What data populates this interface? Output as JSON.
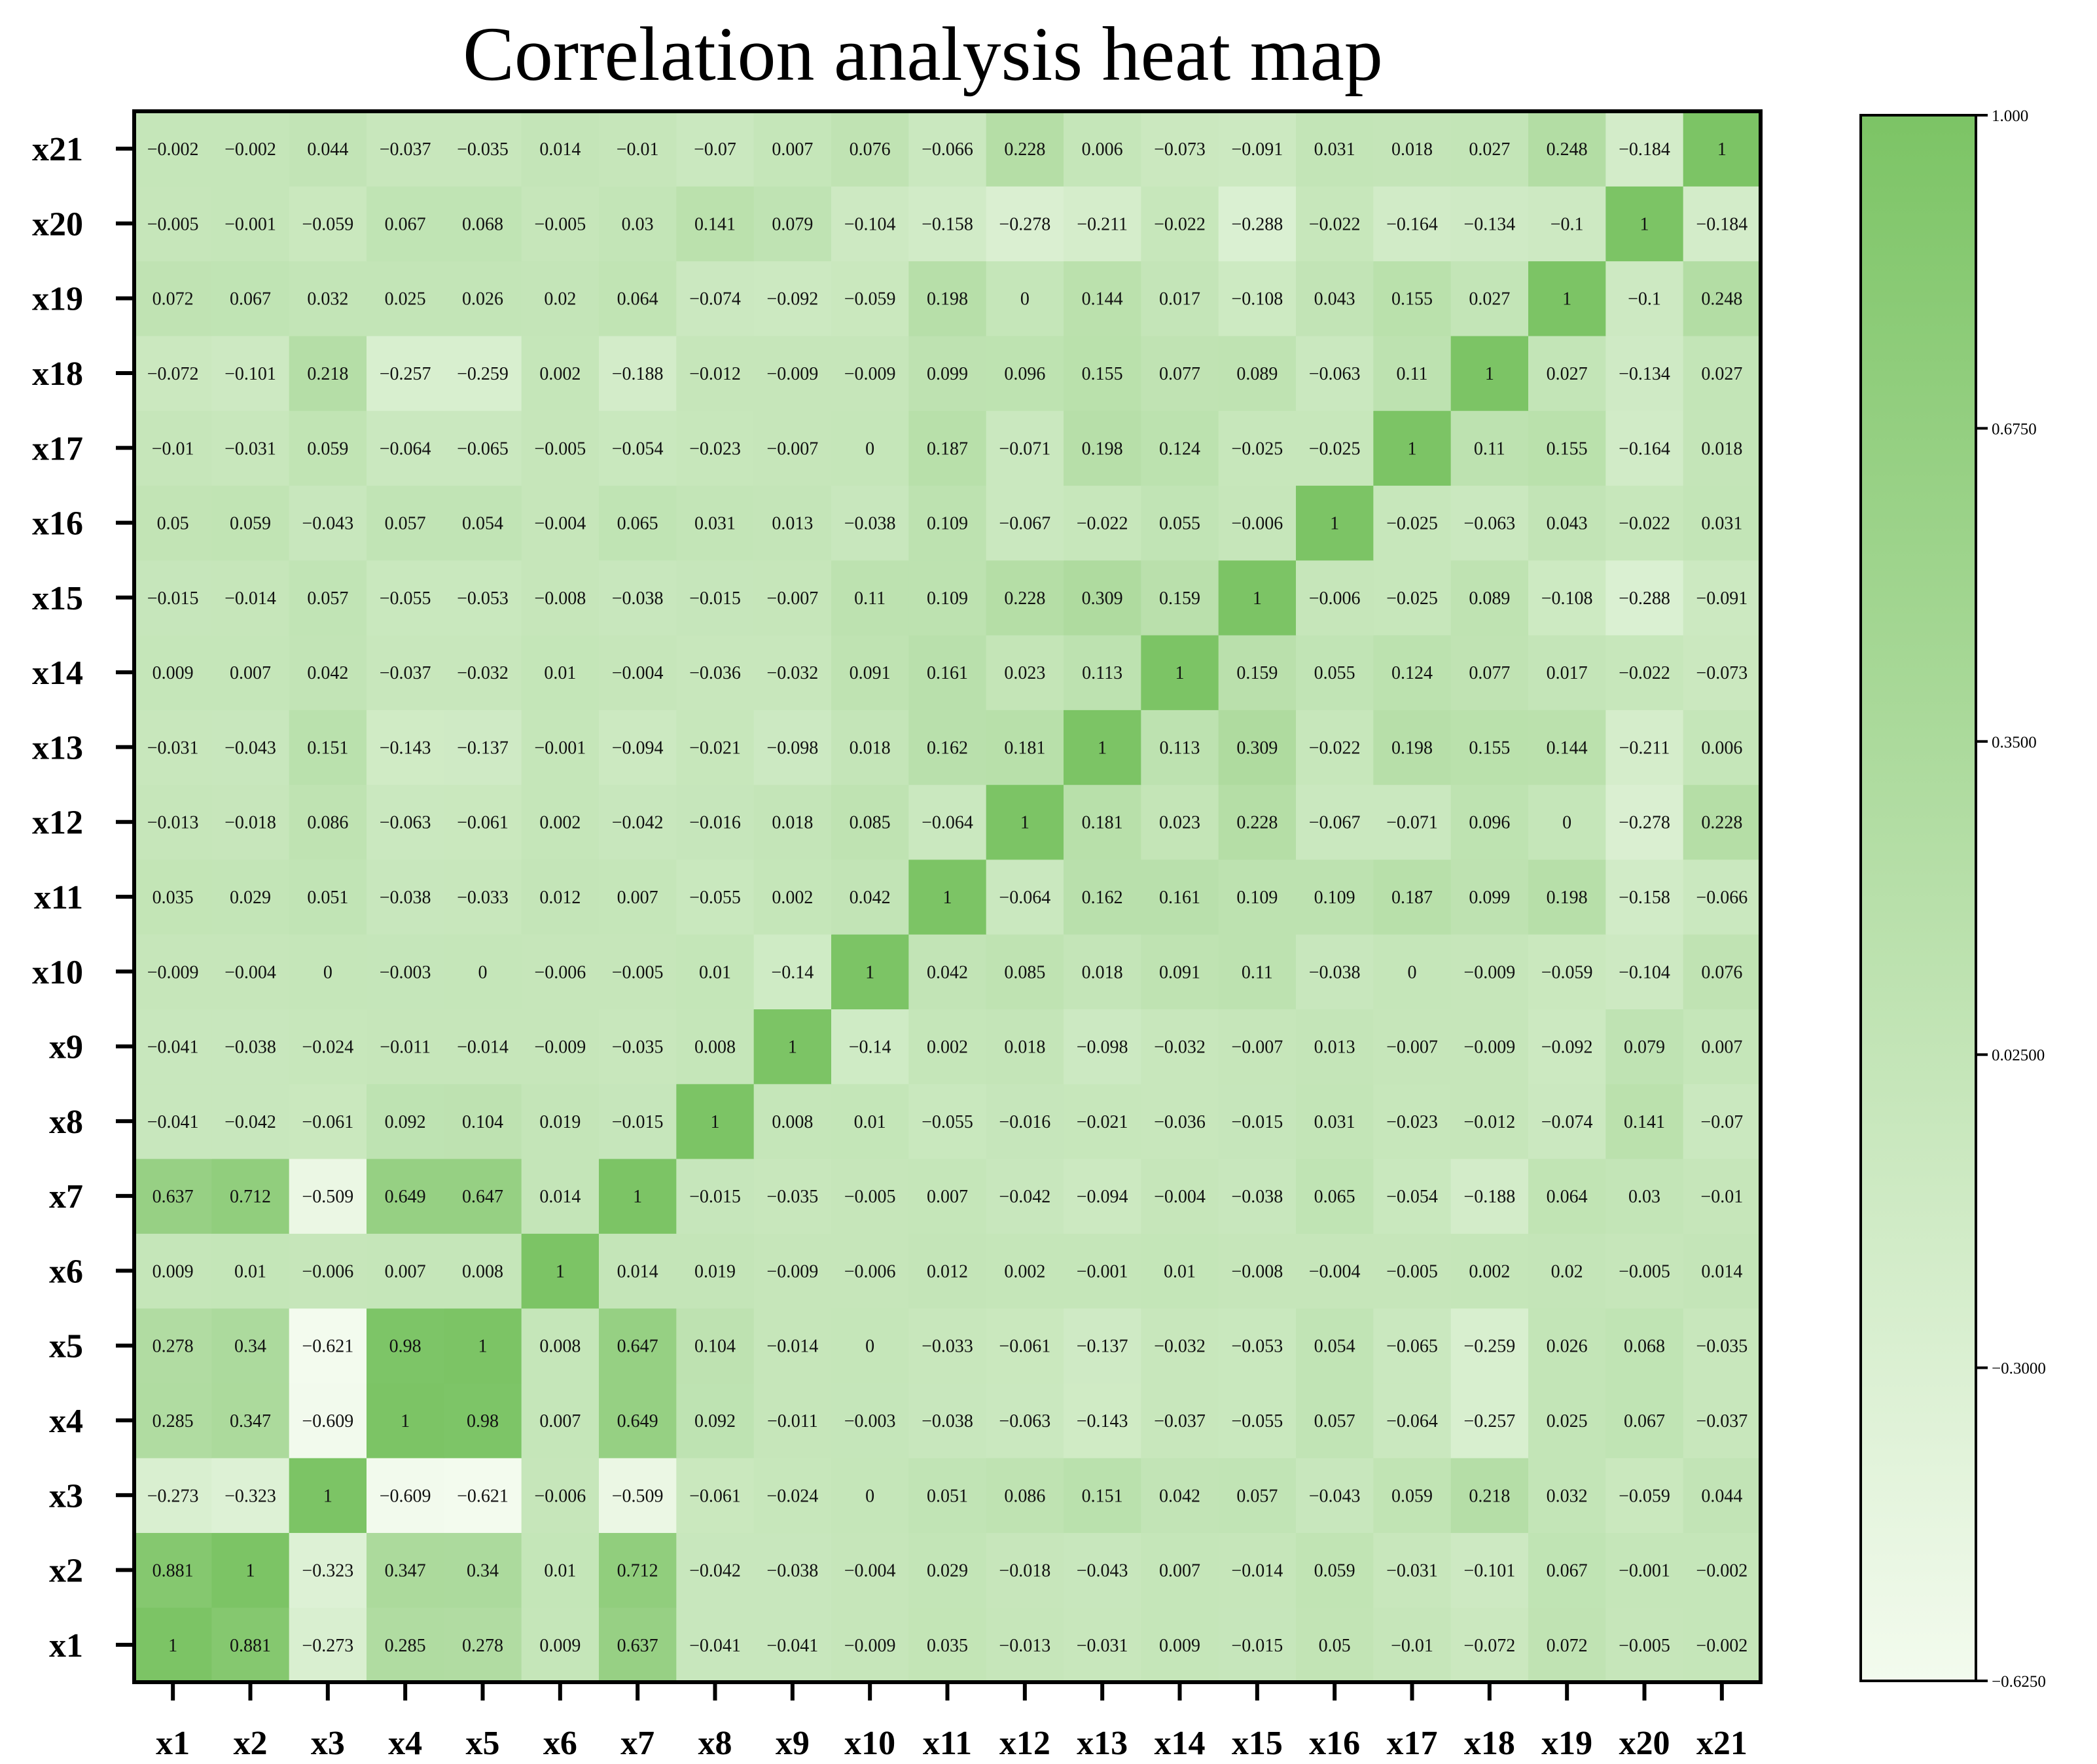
{
  "chart_data": {
    "type": "heatmap",
    "title": "Correlation analysis heat map",
    "xlabel": "",
    "ylabel": "",
    "labels": [
      "x1",
      "x2",
      "x3",
      "x4",
      "x5",
      "x6",
      "x7",
      "x8",
      "x9",
      "x10",
      "x11",
      "x12",
      "x13",
      "x14",
      "x15",
      "x16",
      "x17",
      "x18",
      "x19",
      "x20",
      "x21"
    ],
    "matrix": [
      [
        1,
        0.881,
        -0.273,
        0.285,
        0.278,
        0.009,
        0.637,
        -0.041,
        -0.041,
        -0.009,
        0.035,
        -0.013,
        -0.031,
        0.009,
        -0.015,
        0.05,
        -0.01,
        -0.072,
        0.072,
        -0.005,
        -0.002
      ],
      [
        0.881,
        1,
        -0.323,
        0.347,
        0.34,
        0.01,
        0.712,
        -0.042,
        -0.038,
        -0.004,
        0.029,
        -0.018,
        -0.043,
        0.007,
        -0.014,
        0.059,
        -0.031,
        -0.101,
        0.067,
        -0.001,
        -0.002
      ],
      [
        -0.273,
        -0.323,
        1,
        -0.609,
        -0.621,
        -0.006,
        -0.509,
        -0.061,
        -0.024,
        0,
        0.051,
        0.086,
        0.151,
        0.042,
        0.057,
        -0.043,
        0.059,
        0.218,
        0.032,
        -0.059,
        0.044
      ],
      [
        0.285,
        0.347,
        -0.609,
        1,
        0.98,
        0.007,
        0.649,
        0.092,
        -0.011,
        -0.003,
        -0.038,
        -0.063,
        -0.143,
        -0.037,
        -0.055,
        0.057,
        -0.064,
        -0.257,
        0.025,
        0.067,
        -0.037
      ],
      [
        0.278,
        0.34,
        -0.621,
        0.98,
        1,
        0.008,
        0.647,
        0.104,
        -0.014,
        0,
        -0.033,
        -0.061,
        -0.137,
        -0.032,
        -0.053,
        0.054,
        -0.065,
        -0.259,
        0.026,
        0.068,
        -0.035
      ],
      [
        0.009,
        0.01,
        -0.006,
        0.007,
        0.008,
        1,
        0.014,
        0.019,
        -0.009,
        -0.006,
        0.012,
        0.002,
        -0.001,
        0.01,
        -0.008,
        -0.004,
        -0.005,
        0.002,
        0.02,
        -0.005,
        0.014
      ],
      [
        0.637,
        0.712,
        -0.509,
        0.649,
        0.647,
        0.014,
        1,
        -0.015,
        -0.035,
        -0.005,
        0.007,
        -0.042,
        -0.094,
        -0.004,
        -0.038,
        0.065,
        -0.054,
        -0.188,
        0.064,
        0.03,
        -0.01
      ],
      [
        -0.041,
        -0.042,
        -0.061,
        0.092,
        0.104,
        0.019,
        -0.015,
        1,
        0.008,
        0.01,
        -0.055,
        -0.016,
        -0.021,
        -0.036,
        -0.015,
        0.031,
        -0.023,
        -0.012,
        -0.074,
        0.141,
        -0.07
      ],
      [
        -0.041,
        -0.038,
        -0.024,
        -0.011,
        -0.014,
        -0.009,
        -0.035,
        0.008,
        1,
        -0.14,
        0.002,
        0.018,
        -0.098,
        -0.032,
        -0.007,
        0.013,
        -0.007,
        -0.009,
        -0.092,
        0.079,
        0.007
      ],
      [
        -0.009,
        -0.004,
        0,
        -0.003,
        0,
        -0.006,
        -0.005,
        0.01,
        -0.14,
        1,
        0.042,
        0.085,
        0.018,
        0.091,
        0.11,
        -0.038,
        0,
        -0.009,
        -0.059,
        -0.104,
        0.076
      ],
      [
        0.035,
        0.029,
        0.051,
        -0.038,
        -0.033,
        0.012,
        0.007,
        -0.055,
        0.002,
        0.042,
        1,
        -0.064,
        0.162,
        0.161,
        0.109,
        0.109,
        0.187,
        0.099,
        0.198,
        -0.158,
        -0.066
      ],
      [
        -0.013,
        -0.018,
        0.086,
        -0.063,
        -0.061,
        0.002,
        -0.042,
        -0.016,
        0.018,
        0.085,
        -0.064,
        1,
        0.181,
        0.023,
        0.228,
        -0.067,
        -0.071,
        0.096,
        0,
        -0.278,
        0.228
      ],
      [
        -0.031,
        -0.043,
        0.151,
        -0.143,
        -0.137,
        -0.001,
        -0.094,
        -0.021,
        -0.098,
        0.018,
        0.162,
        0.181,
        1,
        0.113,
        0.309,
        -0.022,
        0.198,
        0.155,
        0.144,
        -0.211,
        0.006
      ],
      [
        0.009,
        0.007,
        0.042,
        -0.037,
        -0.032,
        0.01,
        -0.004,
        -0.036,
        -0.032,
        0.091,
        0.161,
        0.023,
        0.113,
        1,
        0.159,
        0.055,
        0.124,
        0.077,
        0.017,
        -0.022,
        -0.073
      ],
      [
        -0.015,
        -0.014,
        0.057,
        -0.055,
        -0.053,
        -0.008,
        -0.038,
        -0.015,
        -0.007,
        0.11,
        0.109,
        0.228,
        0.309,
        0.159,
        1,
        -0.006,
        -0.025,
        0.089,
        -0.108,
        -0.288,
        -0.091
      ],
      [
        0.05,
        0.059,
        -0.043,
        0.057,
        0.054,
        -0.004,
        0.065,
        0.031,
        0.013,
        -0.038,
        0.109,
        -0.067,
        -0.022,
        0.055,
        -0.006,
        1,
        -0.025,
        -0.063,
        0.043,
        -0.022,
        0.031
      ],
      [
        -0.01,
        -0.031,
        0.059,
        -0.064,
        -0.065,
        -0.005,
        -0.054,
        -0.023,
        -0.007,
        0,
        0.187,
        -0.071,
        0.198,
        0.124,
        -0.025,
        -0.025,
        1,
        0.11,
        0.155,
        -0.164,
        0.018
      ],
      [
        -0.072,
        -0.101,
        0.218,
        -0.257,
        -0.259,
        0.002,
        -0.188,
        -0.012,
        -0.009,
        -0.009,
        0.099,
        0.096,
        0.155,
        0.077,
        0.089,
        -0.063,
        0.11,
        1,
        0.027,
        -0.134,
        0.027
      ],
      [
        0.072,
        0.067,
        0.032,
        0.025,
        0.026,
        0.02,
        0.064,
        -0.074,
        -0.092,
        -0.059,
        0.198,
        0,
        0.144,
        0.017,
        -0.108,
        0.043,
        0.155,
        0.027,
        1,
        -0.1,
        0.248
      ],
      [
        -0.005,
        -0.001,
        -0.059,
        0.067,
        0.068,
        -0.005,
        0.03,
        0.141,
        0.079,
        -0.104,
        -0.158,
        -0.278,
        -0.211,
        -0.022,
        -0.288,
        -0.022,
        -0.164,
        -0.134,
        -0.1,
        1,
        -0.184
      ],
      [
        -0.002,
        -0.002,
        0.044,
        -0.037,
        -0.035,
        0.014,
        -0.01,
        -0.07,
        0.007,
        0.076,
        -0.066,
        0.228,
        0.006,
        -0.073,
        -0.091,
        0.031,
        0.018,
        0.027,
        0.248,
        -0.184,
        1
      ]
    ],
    "colorbar": {
      "min": -0.625,
      "max": 1.0,
      "ticks": [
        1.0,
        0.675,
        0.35,
        0.025,
        -0.3,
        -0.625
      ],
      "tick_labels": [
        "1.000",
        "0.6750",
        "0.3500",
        "0.02500",
        "−0.3000",
        "−0.6250"
      ],
      "color_low": "#f3fbee",
      "color_high": "#7cc465"
    },
    "colors": {
      "frame": "#000000",
      "text": "#111111"
    }
  }
}
